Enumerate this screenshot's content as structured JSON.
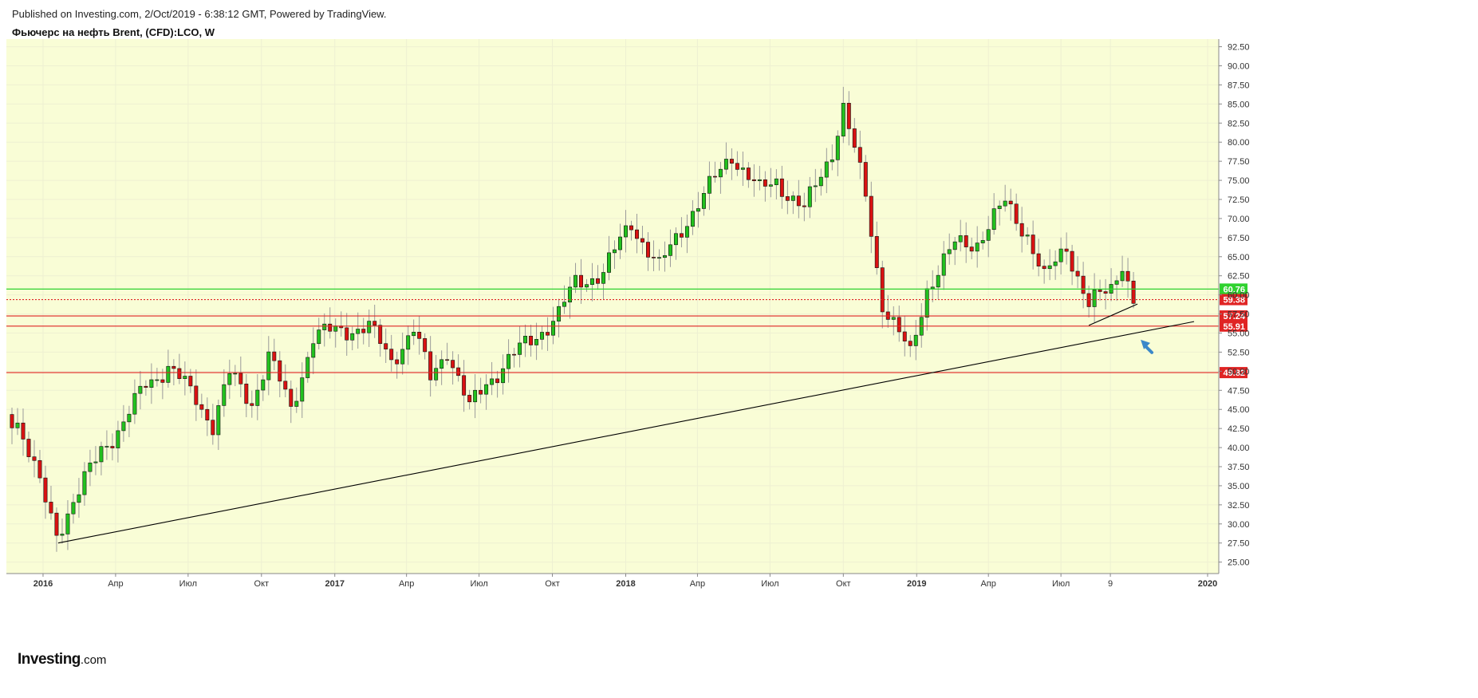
{
  "header": {
    "published": "Published on Investing.com, 2/Oct/2019 - 6:38:12 GMT, Powered by TradingView.",
    "title": "Фьючерс на нефть Brent, (CFD):LCO, W"
  },
  "logo": {
    "name": "Investing",
    "suffix": ".com"
  },
  "colors": {
    "background": "#f9fdd6",
    "up": "#22c11e",
    "down": "#d91212",
    "wick": "#9a9a9a",
    "grid": "#eef0d2",
    "trendline": "#000000",
    "arrow": "#3b88c9"
  },
  "chart_data": {
    "type": "candlestick",
    "title": "Фьючерс на нефть Brent, (CFD):LCO, W",
    "xlabel": "",
    "ylabel": "",
    "ylim": [
      23.5,
      93.5
    ],
    "xlim": [
      "2015-11-16",
      "2020-01-15"
    ],
    "grid": true,
    "y_ticks": [
      25.0,
      27.5,
      30.0,
      32.5,
      35.0,
      37.5,
      40.0,
      42.5,
      45.0,
      47.5,
      50.0,
      52.5,
      55.0,
      57.5,
      60.0,
      62.5,
      65.0,
      67.5,
      70.0,
      72.5,
      75.0,
      77.5,
      80.0,
      82.5,
      85.0,
      87.5,
      90.0,
      92.5
    ],
    "x_ticks": [
      {
        "label": "2016",
        "date": "2016-01-01",
        "year": true
      },
      {
        "label": "Апр",
        "date": "2016-04-01"
      },
      {
        "label": "Июл",
        "date": "2016-07-01"
      },
      {
        "label": "Окт",
        "date": "2016-10-01"
      },
      {
        "label": "2017",
        "date": "2017-01-01",
        "year": true
      },
      {
        "label": "Апр",
        "date": "2017-04-01"
      },
      {
        "label": "Июл",
        "date": "2017-07-01"
      },
      {
        "label": "Окт",
        "date": "2017-10-01"
      },
      {
        "label": "2018",
        "date": "2018-01-01",
        "year": true
      },
      {
        "label": "Апр",
        "date": "2018-04-01"
      },
      {
        "label": "Июл",
        "date": "2018-07-01"
      },
      {
        "label": "Окт",
        "date": "2018-10-01"
      },
      {
        "label": "2019",
        "date": "2019-01-01",
        "year": true
      },
      {
        "label": "Апр",
        "date": "2019-04-01"
      },
      {
        "label": "Июл",
        "date": "2019-07-01"
      },
      {
        "label": "9",
        "date": "2019-09-01"
      },
      {
        "label": "2020",
        "date": "2020-01-01",
        "year": true
      }
    ],
    "levels": [
      {
        "value": 60.76,
        "label": "60.76",
        "color": "#2fd22f",
        "style": "solid"
      },
      {
        "value": 59.38,
        "label": "59.38",
        "color": "#e02424",
        "style": "dotted"
      },
      {
        "value": 57.24,
        "label": "57.24",
        "color": "#e02424",
        "style": "solid"
      },
      {
        "value": 55.91,
        "label": "55.91",
        "color": "#e02424",
        "style": "solid"
      },
      {
        "value": 49.82,
        "label": "49.82",
        "color": "#e02424",
        "style": "solid"
      }
    ],
    "trendlines": [
      {
        "from": [
          "2016-01-20",
          27.5
        ],
        "to": [
          "2019-12-15",
          56.5
        ]
      },
      {
        "from": [
          "2019-08-05",
          56.0
        ],
        "to": [
          "2019-10-05",
          58.8
        ]
      }
    ],
    "annotations": [
      {
        "type": "arrow",
        "at": [
          "2019-10-15",
          53.5
        ],
        "direction": "up-left"
      }
    ],
    "ohlc_weekly_anchors": [
      [
        "2015-11-16",
        44.7
      ],
      [
        "2015-11-30",
        43.5
      ],
      [
        "2015-12-21",
        37.0
      ],
      [
        "2016-01-18",
        29.0
      ],
      [
        "2016-02-15",
        34.0
      ],
      [
        "2016-03-14",
        40.0
      ],
      [
        "2016-04-11",
        43.0
      ],
      [
        "2016-05-09",
        48.5
      ],
      [
        "2016-06-06",
        50.5
      ],
      [
        "2016-07-11",
        46.5
      ],
      [
        "2016-08-01",
        43.0
      ],
      [
        "2016-08-22",
        49.5
      ],
      [
        "2016-09-19",
        46.0
      ],
      [
        "2016-10-10",
        52.0
      ],
      [
        "2016-11-07",
        45.0
      ],
      [
        "2016-12-05",
        54.5
      ],
      [
        "2017-01-09",
        55.5
      ],
      [
        "2017-02-13",
        55.7
      ],
      [
        "2017-03-13",
        51.5
      ],
      [
        "2017-04-10",
        55.5
      ],
      [
        "2017-05-01",
        49.0
      ],
      [
        "2017-05-22",
        53.0
      ],
      [
        "2017-06-19",
        45.0
      ],
      [
        "2017-07-10",
        48.5
      ],
      [
        "2017-08-07",
        51.5
      ],
      [
        "2017-09-04",
        54.0
      ],
      [
        "2017-10-09",
        57.5
      ],
      [
        "2017-10-30",
        61.5
      ],
      [
        "2017-12-04",
        63.0
      ],
      [
        "2018-01-08",
        69.5
      ],
      [
        "2018-02-12",
        63.5
      ],
      [
        "2018-03-19",
        70.0
      ],
      [
        "2018-04-16",
        74.0
      ],
      [
        "2018-05-14",
        78.5
      ],
      [
        "2018-06-18",
        73.5
      ],
      [
        "2018-07-09",
        75.0
      ],
      [
        "2018-08-13",
        71.0
      ],
      [
        "2018-09-17",
        79.0
      ],
      [
        "2018-10-01",
        84.5
      ],
      [
        "2018-10-29",
        73.0
      ],
      [
        "2018-11-19",
        59.0
      ],
      [
        "2018-12-24",
        52.0
      ],
      [
        "2019-01-14",
        61.0
      ],
      [
        "2019-02-18",
        66.5
      ],
      [
        "2019-03-18",
        67.0
      ],
      [
        "2019-04-22",
        72.0
      ],
      [
        "2019-05-20",
        68.0
      ],
      [
        "2019-06-10",
        62.0
      ],
      [
        "2019-07-08",
        66.5
      ],
      [
        "2019-08-05",
        58.5
      ],
      [
        "2019-09-02",
        61.0
      ],
      [
        "2019-09-16",
        64.5
      ],
      [
        "2019-09-30",
        58.9
      ]
    ]
  }
}
